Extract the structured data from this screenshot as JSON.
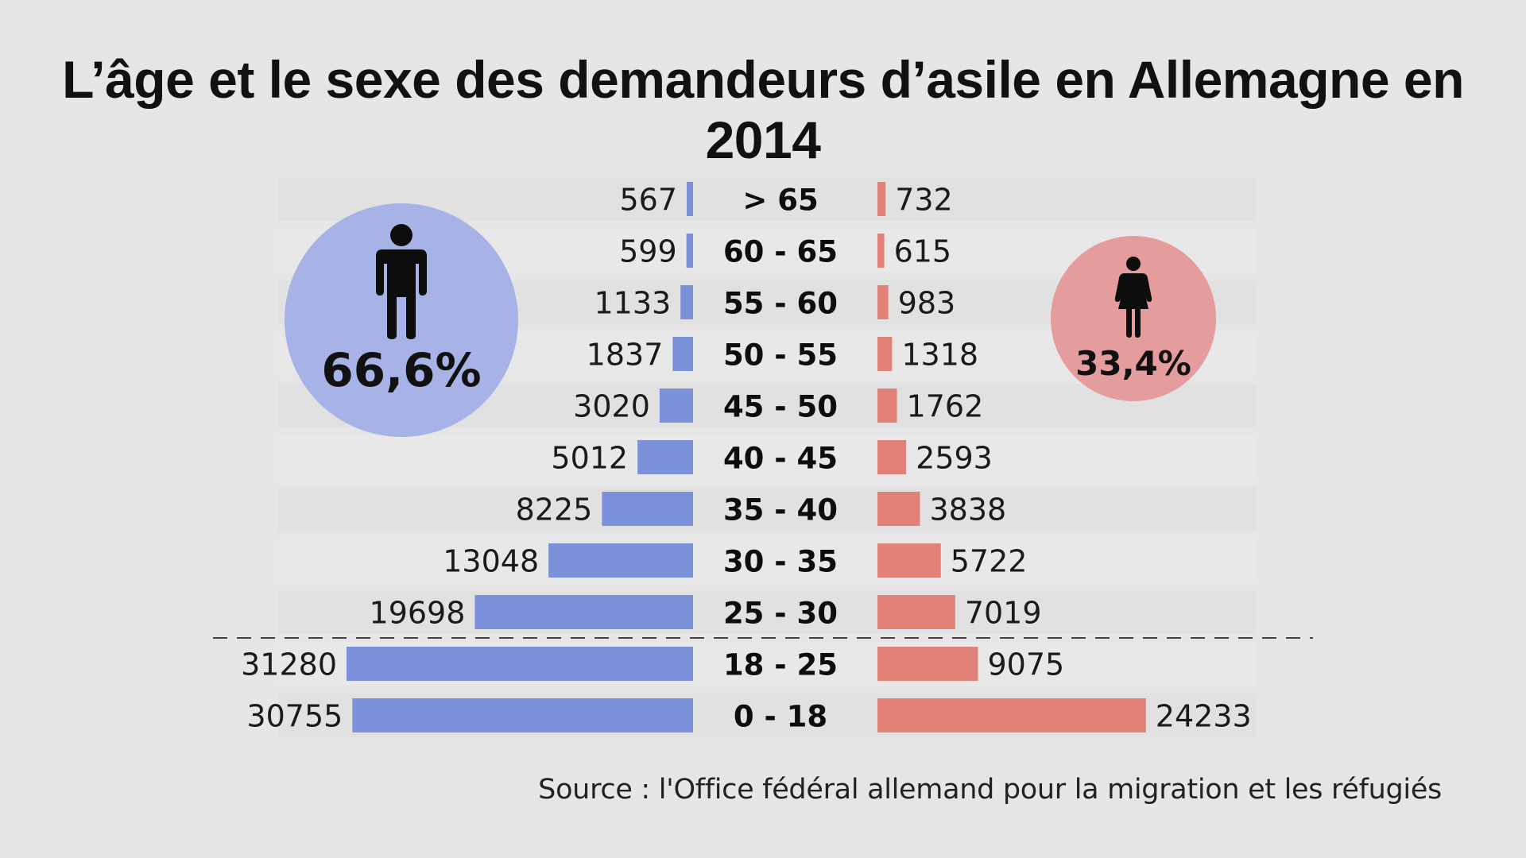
{
  "title": "L’âge et le sexe des demandeurs d’asile en Allemagne en 2014",
  "source": "Source : l'Office fédéral allemand pour la migration et les réfugiés",
  "colors": {
    "male": "#7b91d9",
    "female": "#e28177",
    "male_circle": "#a7b2e6",
    "female_circle": "#e49c9c",
    "background": "#e6e6e6"
  },
  "male": {
    "percent": "66,6%",
    "icon": "male-person-icon"
  },
  "female": {
    "percent": "33,4%",
    "icon": "female-person-icon"
  },
  "chart_data": {
    "type": "bar",
    "orientation": "horizontal-pyramid",
    "categories": [
      "> 65",
      "60 - 65",
      "55 - 60",
      "50 - 55",
      "45 - 50",
      "40 - 45",
      "35 - 40",
      "30 - 35",
      "25 - 30",
      "18 - 25",
      "0 - 18"
    ],
    "series": [
      {
        "values": [
          567,
          599,
          1133,
          1837,
          3020,
          5012,
          8225,
          13048,
          19698,
          31280,
          30755
        ]
      },
      {
        "values": [
          732,
          615,
          983,
          1318,
          1762,
          2593,
          3838,
          5722,
          7019,
          9075,
          24233
        ]
      }
    ],
    "divider_after_category": "25 - 30",
    "xlim": [
      0,
      31280
    ],
    "title": "L’âge et le sexe des demandeurs d’asile en Allemagne en 2014"
  }
}
